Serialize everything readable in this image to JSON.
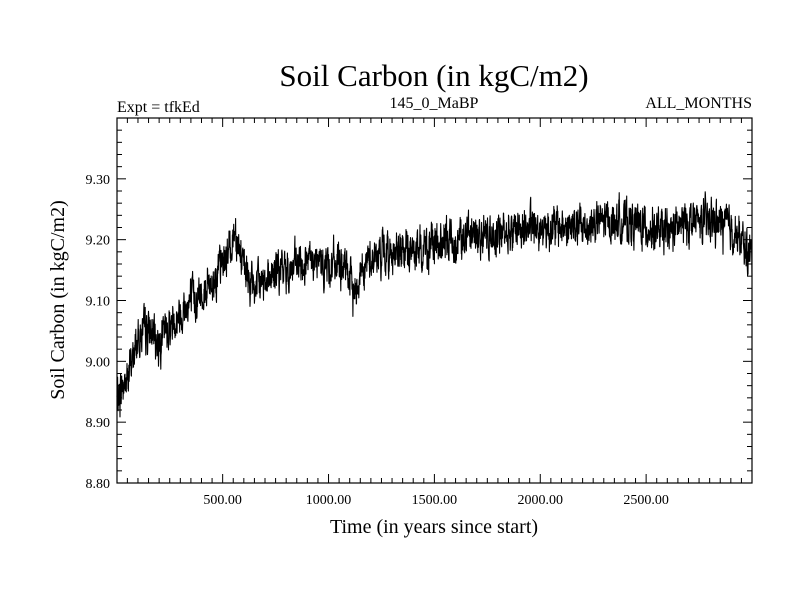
{
  "chart_data": {
    "type": "line",
    "title": "Soil Carbon (in kgC/m2)",
    "subtitle_left": "Expt = tfkEd",
    "subtitle_center": "145_0_MaBP",
    "subtitle_right": "ALL_MONTHS",
    "xlabel": "Time (in years since start)",
    "ylabel": "Soil Carbon (in kgC/m2)",
    "xlim": [
      1,
      3000
    ],
    "ylim": [
      8.8,
      9.4
    ],
    "xticks": [
      500,
      1000,
      1500,
      2000,
      2500
    ],
    "xtick_labels": [
      "500.00",
      "1000.00",
      "1500.00",
      "2000.00",
      "2500.00"
    ],
    "yticks": [
      8.8,
      8.9,
      9.0,
      9.1,
      9.2,
      9.3
    ],
    "ytick_labels": [
      "8.80",
      "8.90",
      "9.00",
      "9.10",
      "9.20",
      "9.30"
    ],
    "grid": false,
    "line_color": "#000000",
    "series": [
      {
        "x": [
          1,
          50,
          100,
          150,
          200,
          250,
          300,
          350,
          400,
          450,
          500,
          540,
          560,
          600,
          650,
          700,
          800,
          900,
          1000,
          1050,
          1100,
          1120,
          1150,
          1200,
          1300,
          1400,
          1500,
          1600,
          1700,
          1800,
          1900,
          2000,
          2100,
          2200,
          2300,
          2400,
          2500,
          2600,
          2700,
          2800,
          2900,
          3000
        ],
        "values": [
          8.94,
          8.97,
          9.04,
          9.05,
          9.03,
          9.06,
          9.08,
          9.1,
          9.11,
          9.13,
          9.16,
          9.19,
          9.22,
          9.15,
          9.12,
          9.14,
          9.15,
          9.16,
          9.16,
          9.16,
          9.14,
          9.11,
          9.15,
          9.17,
          9.18,
          9.18,
          9.19,
          9.2,
          9.21,
          9.21,
          9.22,
          9.22,
          9.22,
          9.22,
          9.23,
          9.23,
          9.22,
          9.21,
          9.23,
          9.23,
          9.22,
          9.17
        ]
      }
    ]
  }
}
